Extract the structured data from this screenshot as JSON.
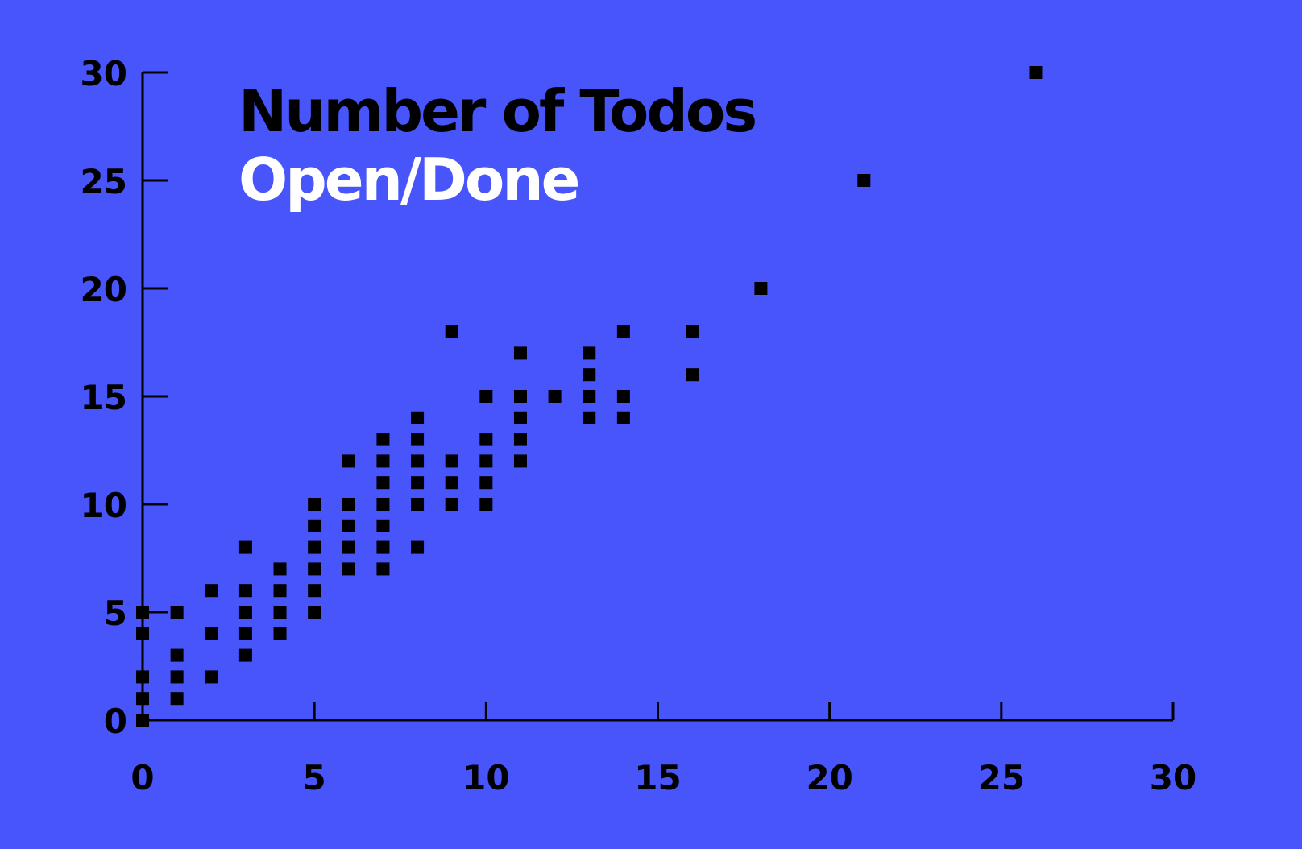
{
  "colors": {
    "background": "#4755fb",
    "ink": "#000000",
    "subtitle": "#ffffff"
  },
  "chart_data": {
    "type": "scatter",
    "title": "Number of Todos",
    "subtitle": "Open/Done",
    "xlabel": "",
    "ylabel": "",
    "xlim": [
      0,
      30
    ],
    "ylim": [
      0,
      30
    ],
    "xticks": [
      0,
      5,
      10,
      15,
      20,
      25,
      30
    ],
    "yticks": [
      0,
      5,
      10,
      15,
      20,
      25,
      30
    ],
    "x_tick_labels": [
      "0",
      "5",
      "10",
      "15",
      "20",
      "25",
      "30"
    ],
    "y_tick_labels": [
      "0",
      "5",
      "10",
      "15",
      "20",
      "25",
      "30"
    ],
    "grid": false,
    "marker": "square",
    "points": [
      [
        0,
        0
      ],
      [
        0,
        1
      ],
      [
        0,
        2
      ],
      [
        0,
        4
      ],
      [
        0,
        5
      ],
      [
        1,
        1
      ],
      [
        1,
        2
      ],
      [
        1,
        3
      ],
      [
        1,
        5
      ],
      [
        2,
        2
      ],
      [
        2,
        4
      ],
      [
        2,
        6
      ],
      [
        3,
        3
      ],
      [
        3,
        4
      ],
      [
        3,
        5
      ],
      [
        3,
        6
      ],
      [
        3,
        8
      ],
      [
        4,
        4
      ],
      [
        4,
        5
      ],
      [
        4,
        6
      ],
      [
        4,
        7
      ],
      [
        5,
        5
      ],
      [
        5,
        6
      ],
      [
        5,
        7
      ],
      [
        5,
        8
      ],
      [
        5,
        9
      ],
      [
        5,
        10
      ],
      [
        6,
        7
      ],
      [
        6,
        8
      ],
      [
        6,
        9
      ],
      [
        6,
        10
      ],
      [
        6,
        12
      ],
      [
        7,
        7
      ],
      [
        7,
        8
      ],
      [
        7,
        9
      ],
      [
        7,
        10
      ],
      [
        7,
        11
      ],
      [
        7,
        12
      ],
      [
        7,
        13
      ],
      [
        8,
        8
      ],
      [
        8,
        10
      ],
      [
        8,
        11
      ],
      [
        8,
        12
      ],
      [
        8,
        13
      ],
      [
        8,
        14
      ],
      [
        9,
        10
      ],
      [
        9,
        11
      ],
      [
        9,
        12
      ],
      [
        9,
        18
      ],
      [
        10,
        10
      ],
      [
        10,
        11
      ],
      [
        10,
        12
      ],
      [
        10,
        13
      ],
      [
        10,
        15
      ],
      [
        11,
        12
      ],
      [
        11,
        13
      ],
      [
        11,
        14
      ],
      [
        11,
        15
      ],
      [
        11,
        17
      ],
      [
        12,
        15
      ],
      [
        13,
        14
      ],
      [
        13,
        15
      ],
      [
        13,
        16
      ],
      [
        13,
        17
      ],
      [
        14,
        14
      ],
      [
        14,
        15
      ],
      [
        14,
        18
      ],
      [
        16,
        16
      ],
      [
        16,
        18
      ],
      [
        18,
        20
      ],
      [
        21,
        25
      ],
      [
        26,
        30
      ]
    ]
  }
}
